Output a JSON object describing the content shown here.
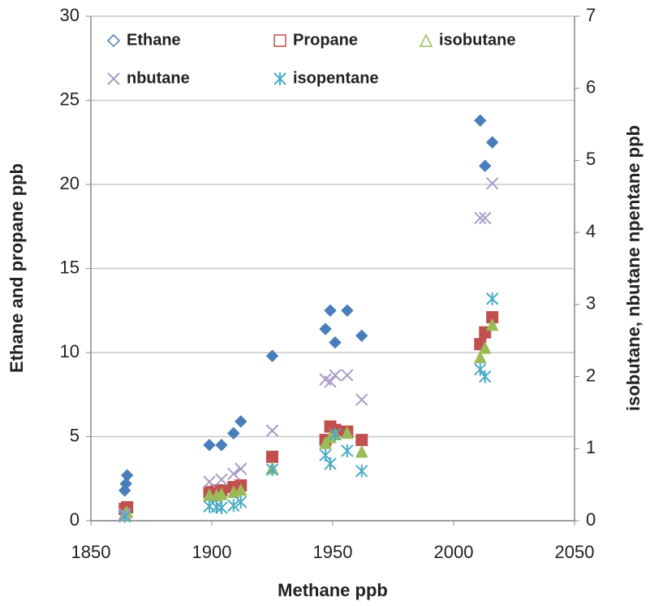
{
  "chart_data": {
    "type": "scatter",
    "x_label": "Methane  ppb",
    "y_label": "Ethane and propane ppb",
    "y2_label": "isobutane, nbutane npentane ppb",
    "xlim": [
      1850,
      2050
    ],
    "xticks": [
      1850,
      1900,
      1950,
      2000,
      2050
    ],
    "ylim": [
      0,
      30
    ],
    "yticks": [
      0,
      5,
      10,
      15,
      20,
      25,
      30
    ],
    "y2lim": [
      0,
      7
    ],
    "y2ticks": [
      0,
      1,
      2,
      3,
      4,
      5,
      6,
      7
    ],
    "grid": true,
    "legend": "top",
    "series": [
      {
        "name": "Ethane",
        "color": "#4a7ebb",
        "marker": "diamond",
        "x": [
          1864,
          1864.5,
          1865,
          1899,
          1904,
          1909,
          1912,
          1925,
          1947,
          1949,
          1951,
          1956,
          1962,
          2011,
          2013,
          2016
        ],
        "values": [
          1.8,
          2.2,
          2.7,
          4.5,
          4.5,
          5.2,
          5.9,
          9.8,
          11.4,
          12.5,
          10.6,
          12.5,
          11.0,
          23.8,
          21.1,
          22.5
        ]
      },
      {
        "name": "Propane",
        "color": "#c0504d",
        "marker": "square",
        "x": [
          1864,
          1865,
          1899,
          1902,
          1904,
          1909,
          1912,
          1925,
          1947,
          1949,
          1951,
          1956,
          1962,
          2011,
          2013,
          2016
        ],
        "values": [
          0.7,
          0.8,
          1.7,
          1.8,
          1.8,
          2.0,
          2.1,
          3.8,
          4.8,
          5.6,
          5.4,
          5.3,
          4.8,
          10.5,
          11.2,
          12.1
        ]
      },
      {
        "name": "isobutane",
        "color": "#9bbb59",
        "marker": "triangle",
        "axis": "y2",
        "x": [
          1864,
          1865,
          1899,
          1902,
          1904,
          1909,
          1912,
          1925,
          1947,
          1949,
          1951,
          1956,
          1962,
          2011,
          2013,
          2016
        ],
        "values": [
          0.1,
          0.12,
          0.36,
          0.35,
          0.37,
          0.4,
          0.43,
          0.73,
          1.08,
          1.16,
          1.2,
          1.22,
          0.96,
          2.27,
          2.4,
          2.72
        ]
      },
      {
        "name": "nbutane",
        "color": "#a99bc8",
        "marker": "x",
        "axis": "y2",
        "x": [
          1864,
          1899,
          1904,
          1909,
          1912,
          1925,
          1947,
          1949,
          1951,
          1956,
          1962,
          2011,
          2013,
          2016
        ],
        "values": [
          0.09,
          0.54,
          0.57,
          0.65,
          0.72,
          1.25,
          1.96,
          1.93,
          2.02,
          2.02,
          1.68,
          4.2,
          4.2,
          4.68
        ]
      },
      {
        "name": "isopentane",
        "color": "#4bacc6",
        "marker": "star",
        "axis": "y2",
        "x": [
          1864,
          1899,
          1902,
          1904,
          1909,
          1912,
          1925,
          1947,
          1949,
          1951,
          1956,
          1962,
          2011,
          2013,
          2016
        ],
        "values": [
          0.06,
          0.2,
          0.19,
          0.18,
          0.21,
          0.26,
          0.71,
          0.91,
          0.79,
          1.2,
          0.97,
          0.69,
          2.1,
          2.0,
          3.08
        ]
      }
    ]
  }
}
